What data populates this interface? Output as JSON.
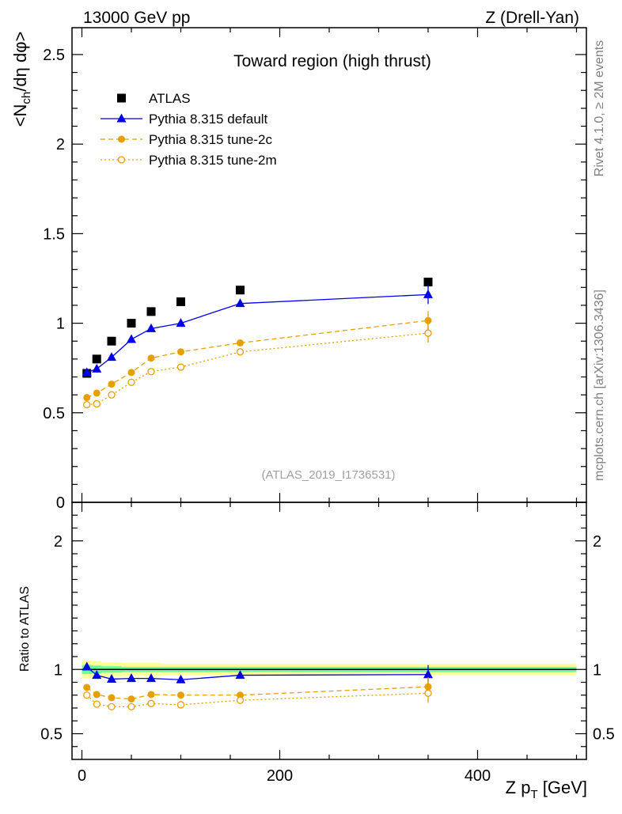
{
  "header": {
    "energy_label": "13000 GeV pp",
    "process_label": "Z (Drell-Yan)",
    "side_top": "Rivet 4.1.0, ≥ 2M events",
    "side_bottom": "mcplots.cern.ch [arXiv:1306.3436]"
  },
  "colors": {
    "atlas": "#000000",
    "default": "#0000e6",
    "tune2c": "#e69f00",
    "tune2m": "#e69f00",
    "band_yellow": "#ffff99",
    "band_green": "#66ff99"
  },
  "chart_data": [
    {
      "type": "line",
      "title": "Toward region (high thrust)",
      "watermark": "(ATLAS_2019_I1736531)",
      "ylabel": "<N_ch/dη dφ>",
      "xlim": [
        -10,
        510
      ],
      "ylim": [
        0,
        2.65
      ],
      "yticks": [
        "0",
        "0.5",
        "1",
        "1.5",
        "2",
        "2.5"
      ],
      "ytick_values": [
        0,
        0.5,
        1,
        1.5,
        2,
        2.5
      ],
      "x": [
        5,
        15,
        30,
        50,
        70,
        100,
        160,
        350
      ],
      "series": [
        {
          "name": "ATLAS",
          "style": "square",
          "values": [
            0.72,
            0.8,
            0.9,
            1.0,
            1.065,
            1.12,
            1.185,
            1.23
          ]
        },
        {
          "name": "Pythia 8.315 default",
          "style": "triangle-solid",
          "values": [
            0.725,
            0.745,
            0.81,
            0.91,
            0.97,
            1.0,
            1.11,
            1.16
          ]
        },
        {
          "name": "Pythia 8.315 tune-2c",
          "style": "circle-dashed",
          "values": [
            0.585,
            0.61,
            0.66,
            0.725,
            0.805,
            0.84,
            0.89,
            1.015
          ]
        },
        {
          "name": "Pythia 8.315 tune-2m",
          "style": "opencircle-dotted",
          "values": [
            0.545,
            0.55,
            0.6,
            0.67,
            0.73,
            0.755,
            0.84,
            0.945
          ]
        }
      ]
    },
    {
      "type": "line",
      "ylabel": "Ratio to ATLAS",
      "xlabel": "Z p_T [GeV]",
      "xlim": [
        -10,
        510
      ],
      "ylim": [
        0.3,
        2.3
      ],
      "yticks": [
        "0.5",
        "1",
        "2"
      ],
      "ytick_values": [
        0.5,
        1,
        2
      ],
      "xticks": [
        "0",
        "200",
        "400"
      ],
      "xtick_values": [
        0,
        200,
        400
      ],
      "x": [
        5,
        15,
        30,
        50,
        70,
        100,
        160,
        350
      ],
      "series": [
        {
          "name": "Pythia 8.315 default",
          "style": "triangle-solid",
          "values": [
            1.02,
            0.955,
            0.925,
            0.93,
            0.93,
            0.92,
            0.955,
            0.96
          ]
        },
        {
          "name": "Pythia 8.315 tune-2c",
          "style": "circle-dashed",
          "values": [
            0.86,
            0.805,
            0.78,
            0.77,
            0.805,
            0.8,
            0.8,
            0.865
          ]
        },
        {
          "name": "Pythia 8.315 tune-2m",
          "style": "opencircle-dotted",
          "values": [
            0.8,
            0.73,
            0.71,
            0.71,
            0.735,
            0.725,
            0.76,
            0.815
          ]
        }
      ]
    }
  ]
}
